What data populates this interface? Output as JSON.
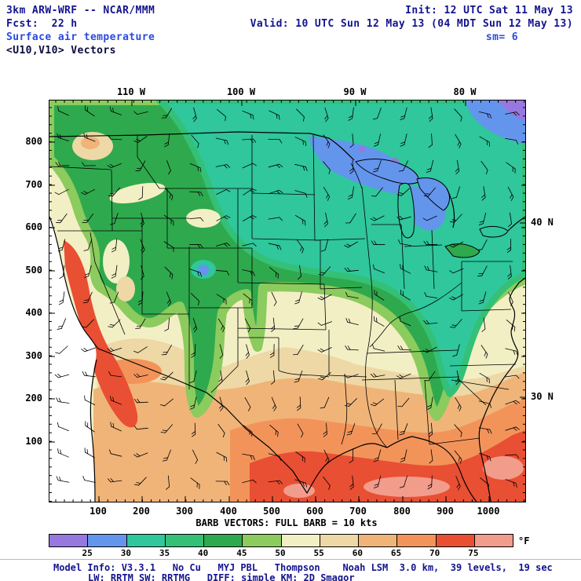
{
  "header": {
    "model": "3km ARW-WRF -- NCAR/MMM",
    "init": "Init: 12 UTC Sat 11 May 13",
    "fcst": "Fcst:  22 h",
    "valid": "Valid: 10 UTC Sun 12 May 13 (04 MDT Sun 12 May 13)",
    "product": "Surface air temperature",
    "sm": "sm= 6",
    "vectors": "<U10,V10> Vectors"
  },
  "map": {
    "top_axis": [
      "110 W",
      "100 W",
      "90 W",
      "80 W"
    ],
    "left_axis": [
      "800",
      "700",
      "600",
      "500",
      "400",
      "300",
      "200",
      "100"
    ],
    "bottom_axis": [
      "100",
      "200",
      "300",
      "400",
      "500",
      "600",
      "700",
      "800",
      "900",
      "1000"
    ],
    "right_axis": [
      "40 N",
      "30 N"
    ]
  },
  "legend": {
    "caption": "BARB VECTORS: FULL BARB = 10 kts",
    "colorbar": {
      "unit": "°F",
      "tick_labels": [
        "25",
        "30",
        "35",
        "40",
        "45",
        "50",
        "55",
        "60",
        "65",
        "70",
        "75"
      ],
      "colors": [
        "#9678DE",
        "#6495ED",
        "#2FC79B",
        "#34C077",
        "#2FA94D",
        "#8CCB5E",
        "#F3EFC5",
        "#EDD8A6",
        "#F0B478",
        "#F2945A",
        "#E94F33",
        "#F29C8C"
      ]
    }
  },
  "footer": {
    "line1": "Model Info: V3.3.1   No Cu   MYJ PBL   Thompson    Noah LSM  3.0 km,  39 levels,  19 sec",
    "line2": "LW: RRTM SW: RRTMG   DIFF: simple KM: 2D Smagor"
  }
}
